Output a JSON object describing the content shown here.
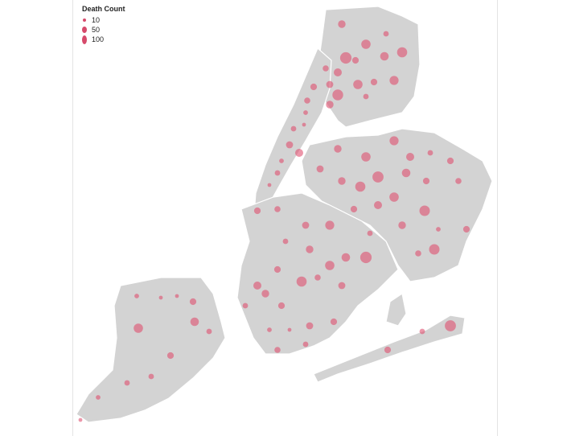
{
  "legend": {
    "title": "Death Count",
    "entries": [
      {
        "label": "10",
        "value": 10
      },
      {
        "label": "50",
        "value": 50
      },
      {
        "label": "100",
        "value": 100
      }
    ]
  },
  "colors": {
    "land": "#d3d3d3",
    "bubble": "#e05070",
    "border": "#ffffff"
  },
  "bubble_counts": [
    40,
    60,
    20,
    90,
    30,
    50,
    70,
    25,
    45,
    35,
    80,
    60,
    30,
    55,
    20,
    40,
    30,
    25,
    15,
    10,
    20,
    35,
    45,
    15,
    20,
    10,
    25,
    30,
    40,
    60,
    85,
    55,
    45,
    20,
    30,
    70,
    40,
    35,
    50,
    30,
    25,
    60,
    75,
    45,
    30,
    55,
    35,
    20,
    40,
    90,
    50,
    60,
    70,
    30,
    45,
    25,
    35,
    20,
    40,
    15,
    30,
    75,
    25,
    30,
    40,
    20,
    35,
    10,
    15,
    30,
    20,
    25,
    85,
    20,
    30
  ]
}
